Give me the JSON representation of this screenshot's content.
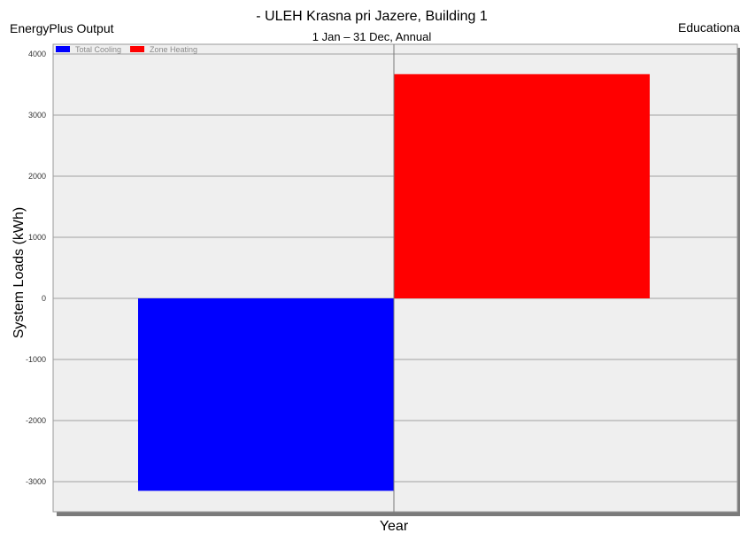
{
  "header": {
    "left_label": "EnergyPlus Output",
    "right_label": "Educationa",
    "title": "- ULEH Krasna pri Jazere, Building 1",
    "subtitle": "1 Jan – 31 Dec, Annual"
  },
  "chart_data": {
    "type": "bar",
    "title": "- ULEH Krasna pri Jazere, Building 1",
    "subtitle": "1 Jan – 31 Dec, Annual",
    "xlabel": "Year",
    "ylabel": "System Loads (kWh)",
    "ylim": [
      -3500,
      4000
    ],
    "yticks": [
      4000,
      3000,
      2000,
      1000,
      0,
      -1000,
      -2000,
      -3000
    ],
    "grid": true,
    "legend_position": "top-left",
    "categories": [
      "Year"
    ],
    "series": [
      {
        "name": "Total Cooling",
        "color": "#0000ff",
        "values": [
          -3150
        ]
      },
      {
        "name": "Zone Heating",
        "color": "#ff0000",
        "values": [
          3670
        ]
      }
    ]
  },
  "colors": {
    "plot_background": "#efefef",
    "grid": "#a0a0a0",
    "frame_shadow": "#7a7a7a"
  }
}
